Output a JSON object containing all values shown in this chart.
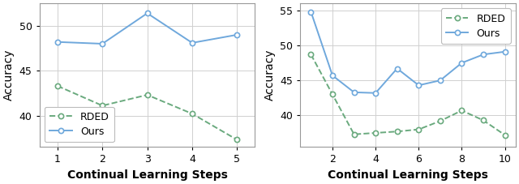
{
  "left": {
    "rded_x": [
      1,
      2,
      3,
      4,
      5
    ],
    "rded_y": [
      43.3,
      41.1,
      42.3,
      40.2,
      37.3
    ],
    "ours_x": [
      1,
      2,
      3,
      4,
      5
    ],
    "ours_y": [
      48.2,
      48.0,
      51.4,
      48.1,
      49.0
    ],
    "xlabel": "Continual Learning Steps",
    "ylabel": "Accuracy",
    "xlim": [
      0.6,
      5.4
    ],
    "ylim": [
      36.5,
      52.5
    ],
    "yticks": [
      40,
      45,
      50
    ],
    "xticks": [
      1,
      2,
      3,
      4,
      5
    ],
    "legend_loc": "lower left"
  },
  "right": {
    "rded_x": [
      1,
      2,
      3,
      4,
      5,
      6,
      7,
      8,
      9,
      10
    ],
    "rded_y": [
      48.7,
      43.0,
      37.3,
      37.5,
      37.7,
      38.0,
      39.2,
      40.7,
      39.3,
      37.2
    ],
    "ours_x": [
      1,
      2,
      3,
      4,
      5,
      6,
      7,
      8,
      9,
      10
    ],
    "ours_y": [
      54.8,
      45.7,
      43.3,
      43.2,
      46.7,
      44.3,
      45.0,
      47.5,
      48.7,
      49.1
    ],
    "xlabel": "Continual Learning Steps",
    "ylabel": "Accuracy",
    "xlim": [
      0.5,
      10.5
    ],
    "ylim": [
      35.5,
      56.0
    ],
    "yticks": [
      40,
      45,
      50,
      55
    ],
    "xticks": [
      2,
      4,
      6,
      8,
      10
    ],
    "legend_loc": "upper right"
  },
  "rded_color": "#6aaa7e",
  "ours_color": "#6fa8dc",
  "rded_label": "RDED",
  "ours_label": "Ours",
  "legend_fontsize": 9,
  "axis_label_fontsize": 10,
  "tick_fontsize": 9,
  "marker_size": 4.5,
  "linewidth": 1.4,
  "grid_color": "#d0d0d0",
  "bg_color": "#ffffff"
}
